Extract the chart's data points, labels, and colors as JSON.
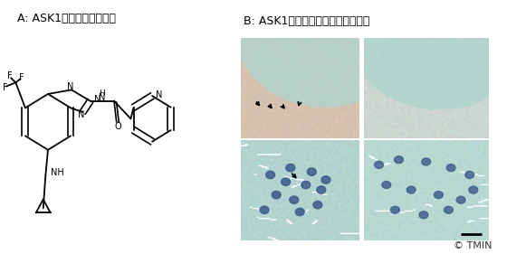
{
  "title_a": "A: ASK1阻害剤の分子構造",
  "title_b": "B: ASK1阻害剤投与による症状改善",
  "copyright": "© TMIN",
  "bg_color": "#ffffff",
  "fig_width": 5.6,
  "fig_height": 2.81,
  "dpi": 100,
  "label_fontsize": 9,
  "copyright_fontsize": 8,
  "img_tl_color": [
    0.82,
    0.75,
    0.68
  ],
  "img_tr_color": [
    0.78,
    0.85,
    0.83
  ],
  "img_bl_color": [
    0.72,
    0.85,
    0.82
  ],
  "img_br_color": [
    0.74,
    0.87,
    0.84
  ],
  "teal_bg": [
    0.68,
    0.83,
    0.8
  ],
  "beige_bg": [
    0.88,
    0.8,
    0.72
  ]
}
